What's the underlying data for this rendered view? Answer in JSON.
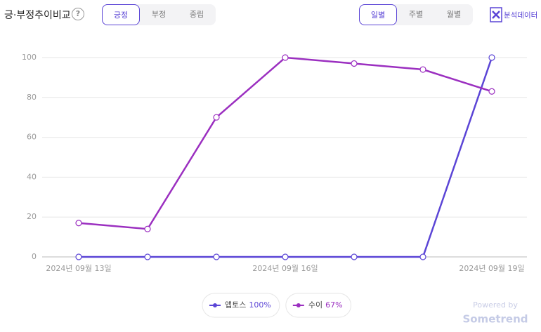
{
  "header": {
    "title": "긍·부정추이비교",
    "help": "?",
    "sentiment_tabs": [
      "긍정",
      "부정",
      "중립"
    ],
    "selected_sentiment": 0,
    "period_tabs": [
      "일별",
      "주별",
      "월별"
    ],
    "selected_period": 0,
    "export": "분석데이터"
  },
  "chart_data": {
    "type": "line",
    "categories": [
      "2024년 09월 13일",
      null,
      null,
      "2024년 09월 16일",
      null,
      null,
      "2024년 09월 19일"
    ],
    "series": [
      {
        "name": "앱토스",
        "color": "#5b45d6",
        "share": {
          "value": 100,
          "label": "100%"
        },
        "values": [
          0,
          0,
          0,
          0,
          0,
          0,
          100
        ]
      },
      {
        "name": "수이",
        "color": "#9b2fc0",
        "share": {
          "value": 67,
          "label": "67%"
        },
        "values": [
          17,
          14,
          70,
          100,
          97,
          94,
          83
        ]
      }
    ],
    "ylim": [
      0,
      100
    ],
    "yticks": [
      0,
      20,
      40,
      60,
      80,
      100
    ],
    "grid": true
  },
  "footer": {
    "powered_by": "Powered by",
    "brand": "Sometrend"
  }
}
